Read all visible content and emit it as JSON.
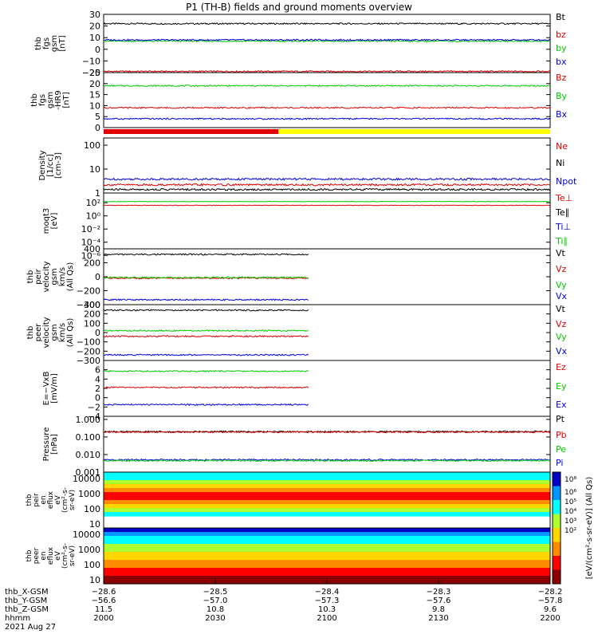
{
  "title": "P1 (TH-B) fields and ground moments overview",
  "colors": {
    "black": "#000000",
    "red": "#e00000",
    "green": "#00c800",
    "blue": "#0000e0",
    "yellow": "#ffff00",
    "darkred": "#d80000"
  },
  "chart_data": {
    "type": "line",
    "title": "P1 (TH-B) fields and ground moments overview",
    "x_range": [
      0,
      120
    ],
    "x_time_ticks": [
      "2000",
      "2030",
      "2100",
      "2130",
      "2200"
    ],
    "panels": [
      {
        "id": "fgs",
        "ylabel_lines": [
          "thb",
          "fgs",
          "gsm",
          "[nT]"
        ],
        "ylim": [
          -20,
          30
        ],
        "yscale": "linear",
        "ytick_labels": [
          "30",
          "20",
          "10",
          "0",
          "−10",
          "−20"
        ],
        "ytick_values": [
          30,
          20,
          10,
          0,
          -10,
          -20
        ],
        "legend": [
          {
            "label": "Bt",
            "color": "black"
          },
          {
            "label": "bz",
            "color": "red"
          },
          {
            "label": "by",
            "color": "green"
          },
          {
            "label": "bx",
            "color": "blue"
          }
        ],
        "series": [
          {
            "name": "Bt",
            "color": "black",
            "level": 22,
            "end": 120
          },
          {
            "name": "bz",
            "color": "red",
            "level": -19,
            "end": 120
          },
          {
            "name": "by",
            "color": "green",
            "level": 7,
            "end": 120
          },
          {
            "name": "bx",
            "color": "blue",
            "level": 8,
            "end": 120
          }
        ]
      },
      {
        "id": "fgs-dsl",
        "ylabel_lines": [
          "thb",
          "fgs",
          "gsm",
          "-HR9",
          "[nT]"
        ],
        "ylim": [
          0,
          25
        ],
        "yscale": "linear",
        "ytick_labels": [
          "25",
          "20",
          "15",
          "10",
          "5",
          "0"
        ],
        "ytick_values": [
          25,
          20,
          15,
          10,
          5,
          0
        ],
        "legend": [
          {
            "label": "Bz",
            "color": "red"
          },
          {
            "label": "By",
            "color": "green"
          },
          {
            "label": "Bx",
            "color": "blue"
          }
        ],
        "series": [
          {
            "name": "By",
            "color": "green",
            "level": 19,
            "end": 120
          },
          {
            "name": "Bz",
            "color": "red",
            "level": 9,
            "end": 120
          },
          {
            "name": "Bx",
            "color": "blue",
            "level": 4,
            "end": 120
          }
        ]
      },
      {
        "id": "density",
        "ylabel_lines": [
          "Density",
          "[1/cc]",
          "[cm-3]"
        ],
        "ylim": [
          1,
          200
        ],
        "yscale": "log",
        "ytick_labels": [
          "100",
          "10",
          "1"
        ],
        "ytick_values": [
          100,
          10,
          1
        ],
        "legend": [
          {
            "label": "Ne",
            "color": "red"
          },
          {
            "label": "Ni",
            "color": "black"
          },
          {
            "label": "Npot",
            "color": "blue"
          }
        ],
        "series": [
          {
            "name": "Npot",
            "color": "blue",
            "level": 3.8,
            "end": 120
          },
          {
            "name": "Ne",
            "color": "red",
            "level": 2.2,
            "end": 120
          },
          {
            "name": "Ni",
            "color": "black",
            "level": 1.4,
            "end": 120
          }
        ]
      },
      {
        "id": "temperature",
        "ylabel_lines": [
          "moqt3",
          "[eV]"
        ],
        "ylim": [
          1e-05,
          3000
        ],
        "yscale": "log",
        "ytick_labels": [
          "10²",
          "10⁰",
          "10⁻²",
          "10⁻⁴",
          "10⁻⁶"
        ],
        "ytick_values": [
          100,
          1,
          0.01,
          0.0001,
          1e-06
        ],
        "legend": [
          {
            "label": "Te⊥",
            "color": "red"
          },
          {
            "label": "Te∥",
            "color": "black"
          },
          {
            "label": "Ti⊥",
            "color": "blue"
          },
          {
            "label": "Ti∥",
            "color": "green"
          }
        ],
        "series": [
          {
            "name": "Te",
            "color": "red",
            "level": 40,
            "end": 120
          },
          {
            "name": "Ti",
            "color": "green",
            "level": 150,
            "end": 120
          }
        ]
      },
      {
        "id": "peir-vel",
        "ylabel_lines": [
          "thb",
          "peir",
          "velocity",
          "gsm",
          "km/s",
          "(All Qs)"
        ],
        "ylim": [
          -400,
          400
        ],
        "yscale": "linear",
        "ytick_labels": [
          "400",
          "200",
          "0",
          "−200",
          "−400"
        ],
        "ytick_values": [
          400,
          200,
          0,
          -200,
          -400
        ],
        "legend": [
          {
            "label": "Vt",
            "color": "black"
          },
          {
            "label": "Vz",
            "color": "red"
          },
          {
            "label": "Vy",
            "color": "green"
          },
          {
            "label": "Vx",
            "color": "blue"
          }
        ],
        "series": [
          {
            "name": "Vt",
            "color": "black",
            "level": 320,
            "end": 55
          },
          {
            "name": "Vz",
            "color": "red",
            "level": -20,
            "end": 55
          },
          {
            "name": "Vy",
            "color": "green",
            "level": -10,
            "end": 55
          },
          {
            "name": "Vx",
            "color": "blue",
            "level": -330,
            "end": 55
          }
        ]
      },
      {
        "id": "peer-vel",
        "ylabel_lines": [
          "thb",
          "peer",
          "velocity",
          "gsm",
          "km/s",
          "(All Qs)"
        ],
        "ylim": [
          -300,
          300
        ],
        "yscale": "linear",
        "ytick_labels": [
          "300",
          "200",
          "100",
          "0",
          "−100",
          "−200",
          "−300"
        ],
        "ytick_values": [
          300,
          200,
          100,
          0,
          -100,
          -200,
          -300
        ],
        "legend": [
          {
            "label": "Vt",
            "color": "black"
          },
          {
            "label": "Vz",
            "color": "red"
          },
          {
            "label": "Vy",
            "color": "green"
          },
          {
            "label": "Vx",
            "color": "blue"
          }
        ],
        "series": [
          {
            "name": "Vt",
            "color": "black",
            "level": 240,
            "end": 55
          },
          {
            "name": "Vy",
            "color": "green",
            "level": 20,
            "end": 55
          },
          {
            "name": "Vz",
            "color": "red",
            "level": -40,
            "end": 55
          },
          {
            "name": "Vx",
            "color": "blue",
            "level": -240,
            "end": 55
          }
        ]
      },
      {
        "id": "efield",
        "ylabel_lines": [
          "E=−VxB",
          "[mV/m]"
        ],
        "ylim": [
          -4,
          8
        ],
        "yscale": "linear",
        "ytick_labels": [
          "6",
          "4",
          "2",
          "0",
          "−2",
          "−4"
        ],
        "ytick_values": [
          6,
          4,
          2,
          0,
          -2,
          -4
        ],
        "legend": [
          {
            "label": "Ez",
            "color": "red"
          },
          {
            "label": "Ey",
            "color": "green"
          },
          {
            "label": "Ex",
            "color": "blue"
          }
        ],
        "series": [
          {
            "name": "Ey",
            "color": "green",
            "level": 5.7,
            "end": 55
          },
          {
            "name": "Ez",
            "color": "red",
            "level": 2.2,
            "end": 55
          },
          {
            "name": "Ex",
            "color": "blue",
            "level": -1.5,
            "end": 55
          }
        ]
      },
      {
        "id": "pressure",
        "ylabel_lines": [
          "Pressure",
          "[nPa]"
        ],
        "ylim": [
          0.001,
          1.5
        ],
        "yscale": "log",
        "ytick_labels": [
          "1.000",
          "0.100",
          "0.010",
          "0.001"
        ],
        "ytick_values": [
          1,
          0.1,
          0.01,
          0.001
        ],
        "legend": [
          {
            "label": "Pt",
            "color": "black"
          },
          {
            "label": "Pb",
            "color": "red"
          },
          {
            "label": "Pe",
            "color": "green"
          },
          {
            "label": "Pi",
            "color": "blue"
          }
        ],
        "series": [
          {
            "name": "Pt",
            "color": "black",
            "level": 0.2,
            "end": 120
          },
          {
            "name": "Pb",
            "color": "red",
            "level": 0.19,
            "end": 120
          },
          {
            "name": "Pi",
            "color": "blue",
            "level": 0.005,
            "end": 120
          },
          {
            "name": "Pe",
            "color": "green",
            "level": 0.0045,
            "end": 120
          }
        ]
      }
    ],
    "spectrograms": [
      {
        "id": "peir-eflux",
        "ylabel_lines": [
          "thb",
          "peir",
          "en",
          "eflux",
          "eV",
          "(cm²-s-",
          "sr-eV)"
        ],
        "ytick_labels": [
          "10000",
          "1000",
          "100",
          "10"
        ],
        "ylim": [
          5,
          20000
        ]
      },
      {
        "id": "peer-eflux",
        "ylabel_lines": [
          "thb",
          "peer",
          "en",
          "eflux",
          "eV",
          "(cm²-s-",
          "sr-eV)"
        ],
        "ytick_labels": [
          "10000",
          "1000",
          "100",
          "10"
        ],
        "ylim": [
          5,
          20000
        ]
      }
    ],
    "colorbar": {
      "ticks": [
        "10⁸",
        "10⁶",
        "10⁵",
        "10⁴",
        "10³",
        "10²"
      ],
      "label": "[eV/(cm²-s-sr-eV)] (All Qs)"
    },
    "ephemeris": {
      "rows": [
        {
          "label": "thb_X-GSM",
          "values": [
            "−28.6",
            "−28.5",
            "−28.4",
            "−28.3",
            "−28.2"
          ]
        },
        {
          "label": "thb_Y-GSM",
          "values": [
            "−56.6",
            "−57.0",
            "−57.3",
            "−57.6",
            "−57.8"
          ]
        },
        {
          "label": "thb_Z-GSM",
          "values": [
            "11.5",
            "10.8",
            "10.3",
            "9.8",
            "9.6"
          ]
        },
        {
          "label": "hhmm",
          "values": [
            "2000",
            "2030",
            "2100",
            "2130",
            "2200"
          ]
        }
      ],
      "date": "2021 Aug 27"
    },
    "mode_bar": {
      "red_until": 47,
      "yellow_after": 47
    }
  }
}
